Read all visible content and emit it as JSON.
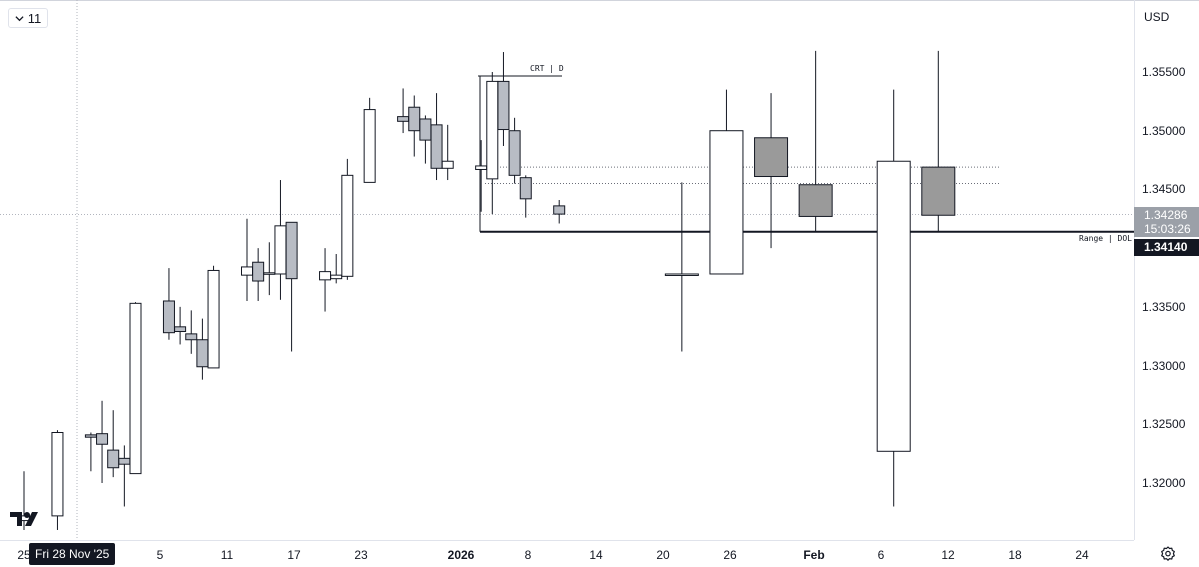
{
  "toolbar": {
    "interval_value": "11",
    "currency": "USD"
  },
  "chart_data": {
    "type": "candlestick",
    "candles": [
      {
        "date": "2025-11-25",
        "open": 1.3168,
        "high": 1.321,
        "low": 1.316,
        "close": 1.3172
      },
      {
        "date": "2025-11-28",
        "open": 1.3172,
        "high": 1.3245,
        "low": 1.316,
        "close": 1.3243
      },
      {
        "date": "2025-12-01",
        "open": 1.3241,
        "high": 1.3243,
        "low": 1.321,
        "close": 1.3239
      },
      {
        "date": "2025-12-02",
        "open": 1.3242,
        "high": 1.327,
        "low": 1.32,
        "close": 1.3233
      },
      {
        "date": "2025-12-03",
        "open": 1.3228,
        "high": 1.3262,
        "low": 1.3205,
        "close": 1.3213
      },
      {
        "date": "2025-12-04",
        "open": 1.3221,
        "high": 1.3232,
        "low": 1.318,
        "close": 1.3216
      },
      {
        "date": "2025-12-05",
        "open": 1.3208,
        "high": 1.3354,
        "low": 1.3208,
        "close": 1.3353
      },
      {
        "date": "2025-12-08",
        "open": 1.3355,
        "high": 1.3383,
        "low": 1.3322,
        "close": 1.3328
      },
      {
        "date": "2025-12-09",
        "open": 1.3333,
        "high": 1.335,
        "low": 1.3318,
        "close": 1.3329
      },
      {
        "date": "2025-12-10",
        "open": 1.3327,
        "high": 1.3347,
        "low": 1.331,
        "close": 1.3322
      },
      {
        "date": "2025-12-11",
        "open": 1.3322,
        "high": 1.334,
        "low": 1.3288,
        "close": 1.3299
      },
      {
        "date": "2025-12-12",
        "open": 1.3298,
        "high": 1.3385,
        "low": 1.3298,
        "close": 1.3381
      },
      {
        "date": "2025-12-15",
        "open": 1.3377,
        "high": 1.3425,
        "low": 1.3355,
        "close": 1.3384
      },
      {
        "date": "2025-12-16",
        "open": 1.3388,
        "high": 1.34,
        "low": 1.3355,
        "close": 1.3372
      },
      {
        "date": "2025-12-17",
        "open": 1.3378,
        "high": 1.3405,
        "low": 1.336,
        "close": 1.3379
      },
      {
        "date": "2025-12-18",
        "open": 1.3378,
        "high": 1.3458,
        "low": 1.3356,
        "close": 1.3419
      },
      {
        "date": "2025-12-19",
        "open": 1.3422,
        "high": 1.3422,
        "low": 1.3312,
        "close": 1.3374
      },
      {
        "date": "2025-12-22",
        "open": 1.3373,
        "high": 1.34,
        "low": 1.3346,
        "close": 1.338
      },
      {
        "date": "2025-12-23",
        "open": 1.3374,
        "high": 1.3395,
        "low": 1.337,
        "close": 1.3377
      },
      {
        "date": "2025-12-24",
        "open": 1.3376,
        "high": 1.3476,
        "low": 1.3373,
        "close": 1.3462
      },
      {
        "date": "2025-12-26",
        "open": 1.3456,
        "high": 1.3528,
        "low": 1.3456,
        "close": 1.3518
      },
      {
        "date": "2025-12-29",
        "open": 1.3512,
        "high": 1.3536,
        "low": 1.3498,
        "close": 1.3508
      },
      {
        "date": "2025-12-30",
        "open": 1.352,
        "high": 1.353,
        "low": 1.3478,
        "close": 1.35
      },
      {
        "date": "2025-12-31",
        "open": 1.351,
        "high": 1.3513,
        "low": 1.3472,
        "close": 1.3492
      },
      {
        "date": "2026-01-01",
        "open": 1.3505,
        "high": 1.3532,
        "low": 1.3458,
        "close": 1.3468
      },
      {
        "date": "2026-01-02",
        "open": 1.3468,
        "high": 1.3505,
        "low": 1.3458,
        "close": 1.3474
      },
      {
        "date": "2026-01-05",
        "open": 1.3467,
        "high": 1.3492,
        "low": 1.3431,
        "close": 1.347
      },
      {
        "date": "2026-01-06",
        "open": 1.3459,
        "high": 1.355,
        "low": 1.3429,
        "close": 1.3542
      },
      {
        "date": "2026-01-07",
        "open": 1.3542,
        "high": 1.3567,
        "low": 1.3487,
        "close": 1.3501
      },
      {
        "date": "2026-01-08",
        "open": 1.35,
        "high": 1.3511,
        "low": 1.3455,
        "close": 1.3462
      },
      {
        "date": "2026-01-09",
        "open": 1.346,
        "high": 1.3462,
        "low": 1.3426,
        "close": 1.3442
      },
      {
        "date": "2026-01-12",
        "open": 1.3436,
        "high": 1.3441,
        "low": 1.3421,
        "close": 1.3429
      }
    ],
    "projection_candles": [
      {
        "date": "2026-01-23",
        "open": 1.3378,
        "high": 1.3456,
        "low": 1.3312,
        "close": 1.3378
      },
      {
        "date": "2026-01-27",
        "open": 1.3378,
        "high": 1.3535,
        "low": 1.3378,
        "close": 1.35
      },
      {
        "date": "2026-01-31",
        "open": 1.3494,
        "high": 1.3532,
        "low": 1.34,
        "close": 1.3461
      },
      {
        "date": "2026-02-04",
        "open": 1.3454,
        "high": 1.3568,
        "low": 1.3414,
        "close": 1.3427
      },
      {
        "date": "2026-02-11",
        "open": 1.3227,
        "high": 1.3535,
        "low": 1.318,
        "close": 1.3474
      },
      {
        "date": "2026-02-15",
        "open": 1.3469,
        "high": 1.3568,
        "low": 1.3414,
        "close": 1.3428
      }
    ],
    "x_ticks": [
      "25",
      "5",
      "11",
      "17",
      "23",
      "2026",
      "8",
      "14",
      "20",
      "26",
      "Feb",
      "6",
      "12",
      "18",
      "24"
    ],
    "y_ticks": [
      "1.35500",
      "1.35000",
      "1.34500",
      "1.33500",
      "1.33000",
      "1.32500",
      "1.32000"
    ],
    "y_range": [
      1.3154,
      1.3605
    ],
    "crosshair_date_label": "Fri 28 Nov '25",
    "current_price": "1.34286",
    "countdown": "15:03:26",
    "level_price": "1.34140",
    "level_label": "Range | DOL",
    "crt_label": "CRT | D",
    "reference_levels": [
      1.3469,
      1.3455
    ]
  }
}
